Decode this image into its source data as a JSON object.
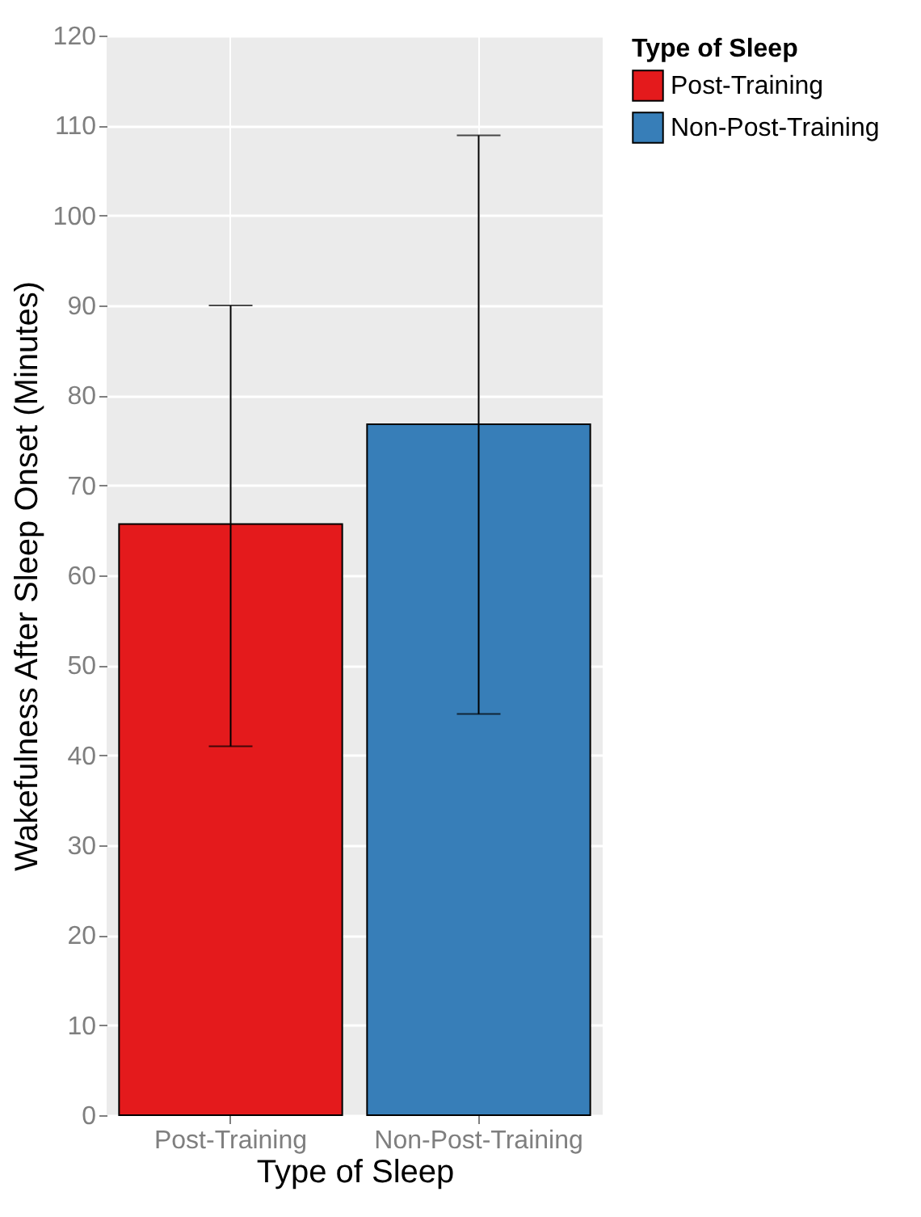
{
  "chart_data": {
    "type": "bar",
    "xlabel": "Type of Sleep",
    "ylabel": "Wakefulness After Sleep Onset (Minutes)",
    "legend_title": "Type of Sleep",
    "categories": [
      "Post-Training",
      "Non-Post-Training"
    ],
    "series": [
      {
        "name": "Post-Training",
        "color": "#e41a1c",
        "values": [
          65.7,
          null
        ],
        "errors": [
          [
            41,
            90
          ],
          null
        ]
      },
      {
        "name": "Non-Post-Training",
        "color": "#377eb8",
        "values": [
          null,
          76.8
        ],
        "errors": [
          null,
          [
            44.6,
            108.9
          ]
        ]
      }
    ],
    "ylim": [
      0,
      120
    ],
    "yticks": [
      0,
      10,
      20,
      30,
      40,
      50,
      60,
      70,
      80,
      90,
      100,
      110,
      120
    ],
    "grid": true,
    "legend": "right"
  }
}
